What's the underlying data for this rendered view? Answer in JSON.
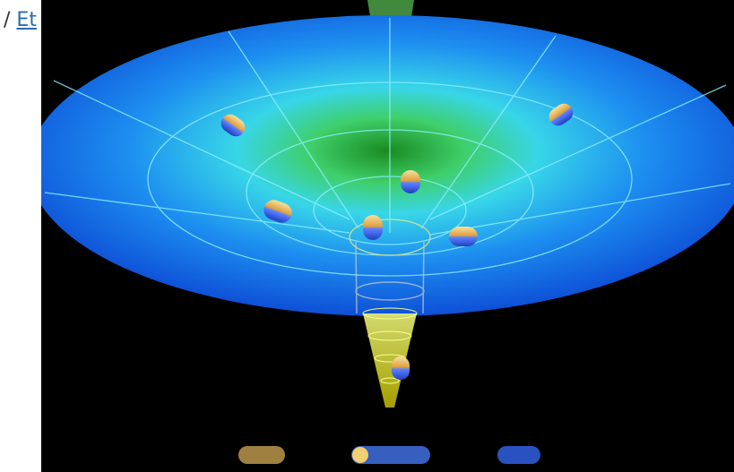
{
  "breadcrumb": {
    "separator": "/",
    "link": "Et"
  }
}
